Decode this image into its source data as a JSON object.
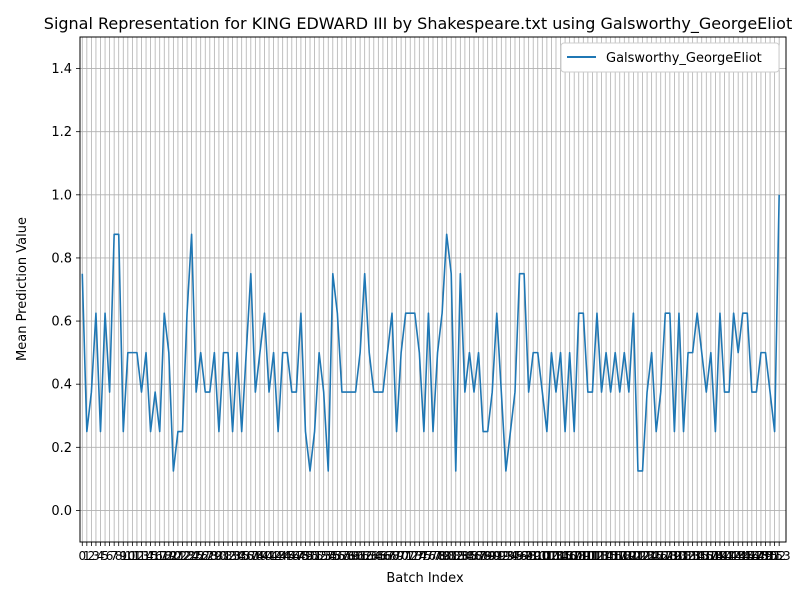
{
  "chart_data": {
    "type": "line",
    "title": "Signal Representation for KING EDWARD III by Shakespeare.txt using Galsworthy_GeorgeEliot",
    "xlabel": "Batch Index",
    "ylabel": "Mean Prediction Value",
    "xlim": [
      -0.5,
      154.5
    ],
    "ylim": [
      -0.1,
      1.5
    ],
    "yticks": [
      0.0,
      0.2,
      0.4,
      0.6,
      0.8,
      1.0,
      1.2,
      1.4
    ],
    "ytick_labels": [
      "0.0",
      "0.2",
      "0.4",
      "0.6",
      "0.8",
      "1.0",
      "1.2",
      "1.4"
    ],
    "xtick_labels": [
      "0",
      "1",
      "2",
      "3",
      "4",
      "5",
      "6",
      "7",
      "8",
      "9",
      "10",
      "11",
      "12",
      "13",
      "14",
      "15",
      "16",
      "17",
      "18",
      "19",
      "20",
      "21",
      "22",
      "23",
      "24",
      "25",
      "26",
      "27",
      "28",
      "29",
      "30",
      "31",
      "32",
      "33",
      "34",
      "35",
      "36",
      "37",
      "38",
      "39",
      "40",
      "41",
      "42",
      "43",
      "44",
      "45",
      "46",
      "47",
      "48",
      "49",
      "50",
      "51",
      "52",
      "53",
      "54",
      "55",
      "56",
      "57",
      "58",
      "59",
      "60",
      "61",
      "62",
      "63",
      "64",
      "65",
      "66",
      "67",
      "68",
      "69",
      "70",
      "71",
      "72",
      "73",
      "74",
      "75",
      "76",
      "77",
      "78",
      "79",
      "80",
      "81",
      "82",
      "83",
      "84",
      "85",
      "86",
      "87",
      "88",
      "89",
      "90",
      "91",
      "92",
      "93",
      "94",
      "95",
      "96",
      "97",
      "98",
      "99",
      "100",
      "101",
      "102",
      "103",
      "104",
      "105",
      "106",
      "107",
      "108",
      "109",
      "110",
      "111",
      "112",
      "113",
      "114",
      "115",
      "116",
      "117",
      "118",
      "119",
      "120",
      "121",
      "122",
      "123",
      "124",
      "125",
      "126",
      "127",
      "128",
      "129",
      "130",
      "131",
      "132",
      "133",
      "134",
      "135",
      "136",
      "137",
      "138",
      "139",
      "140",
      "141",
      "142",
      "143",
      "144",
      "145",
      "146",
      "147",
      "148",
      "149",
      "150",
      "151",
      "152",
      "153"
    ],
    "grid": true,
    "legend_position": "top-right",
    "series": [
      {
        "name": "Galsworthy_GeorgeEliot",
        "color": "#1f77b4",
        "values": [
          0.75,
          0.25,
          0.375,
          0.625,
          0.25,
          0.625,
          0.375,
          0.875,
          0.875,
          0.25,
          0.5,
          0.5,
          0.5,
          0.375,
          0.5,
          0.25,
          0.375,
          0.25,
          0.625,
          0.5,
          0.125,
          0.25,
          0.25,
          0.625,
          0.875,
          0.375,
          0.5,
          0.375,
          0.375,
          0.5,
          0.25,
          0.5,
          0.5,
          0.25,
          0.5,
          0.25,
          0.5,
          0.75,
          0.375,
          0.5,
          0.625,
          0.375,
          0.5,
          0.25,
          0.5,
          0.5,
          0.375,
          0.375,
          0.625,
          0.25,
          0.125,
          0.25,
          0.5,
          0.375,
          0.125,
          0.75,
          0.625,
          0.375,
          0.375,
          0.375,
          0.375,
          0.5,
          0.75,
          0.5,
          0.375,
          0.375,
          0.375,
          0.5,
          0.625,
          0.25,
          0.5,
          0.625,
          0.625,
          0.625,
          0.5,
          0.25,
          0.625,
          0.25,
          0.5,
          0.625,
          0.875,
          0.75,
          0.125,
          0.75,
          0.375,
          0.5,
          0.375,
          0.5,
          0.25,
          0.25,
          0.375,
          0.625,
          0.375,
          0.125,
          0.25,
          0.375,
          0.75,
          0.75,
          0.375,
          0.5,
          0.5,
          0.375,
          0.25,
          0.5,
          0.375,
          0.5,
          0.25,
          0.5,
          0.25,
          0.625,
          0.625,
          0.375,
          0.375,
          0.625,
          0.375,
          0.5,
          0.375,
          0.5,
          0.375,
          0.5,
          0.375,
          0.625,
          0.125,
          0.125,
          0.375,
          0.5,
          0.25,
          0.375,
          0.625,
          0.625,
          0.25,
          0.625,
          0.25,
          0.5,
          0.5,
          0.625,
          0.5,
          0.375,
          0.5,
          0.25,
          0.625,
          0.375,
          0.375,
          0.625,
          0.5,
          0.625,
          0.625,
          0.375,
          0.375,
          0.5,
          0.5,
          0.375,
          0.25,
          1.0
        ]
      }
    ]
  }
}
